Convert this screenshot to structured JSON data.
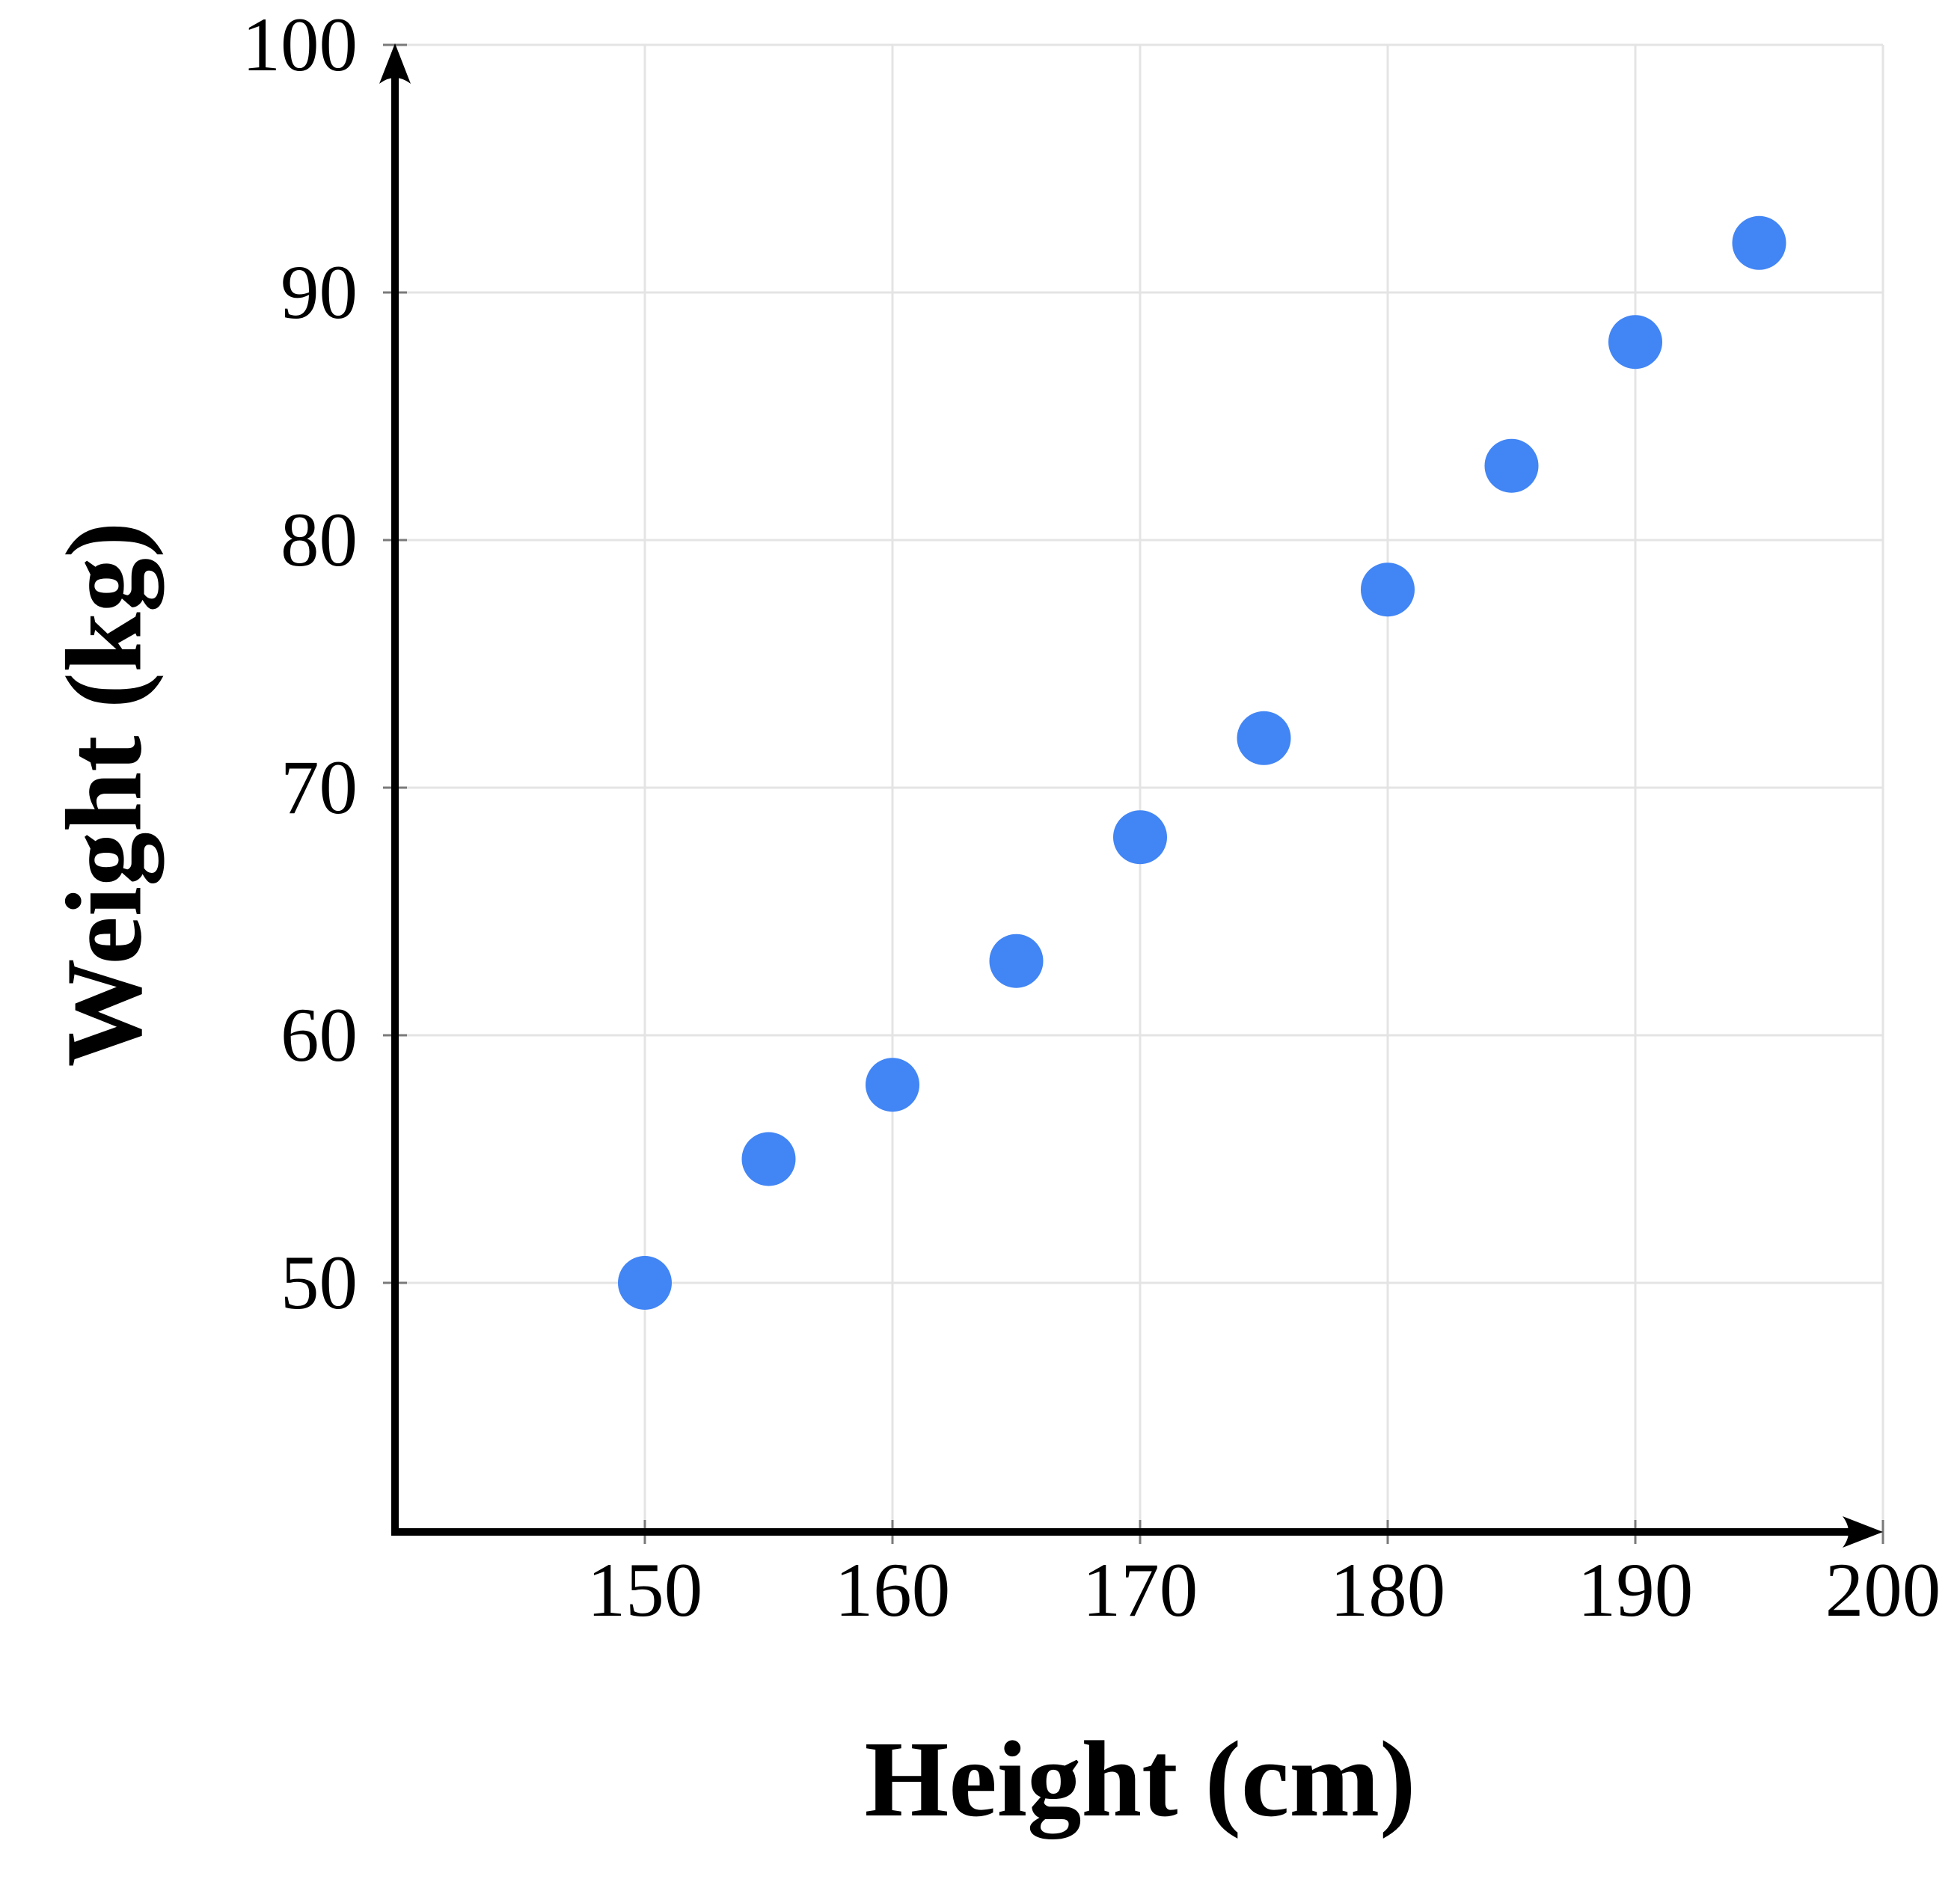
{
  "chart_data": {
    "type": "scatter",
    "title": "",
    "xlabel": "Height (cm)",
    "ylabel": "Weight (kg)",
    "points": [
      {
        "x": 150,
        "y": 50
      },
      {
        "x": 155,
        "y": 55
      },
      {
        "x": 160,
        "y": 58
      },
      {
        "x": 165,
        "y": 63
      },
      {
        "x": 170,
        "y": 68
      },
      {
        "x": 175,
        "y": 72
      },
      {
        "x": 180,
        "y": 78
      },
      {
        "x": 185,
        "y": 83
      },
      {
        "x": 190,
        "y": 88
      },
      {
        "x": 195,
        "y": 92
      }
    ],
    "x_ticks": [
      150,
      160,
      170,
      180,
      190,
      200
    ],
    "y_ticks": [
      50,
      60,
      70,
      80,
      90,
      100
    ],
    "xlim": [
      139.9,
      200
    ],
    "ylim": [
      39.9,
      100
    ],
    "grid": true,
    "legend": "none",
    "colors": {
      "point": "#4285f4",
      "grid": "#e4e4e4",
      "axis": "#000000",
      "tick": "#7a7a7a",
      "text": "#000000",
      "background": "#ffffff"
    }
  }
}
